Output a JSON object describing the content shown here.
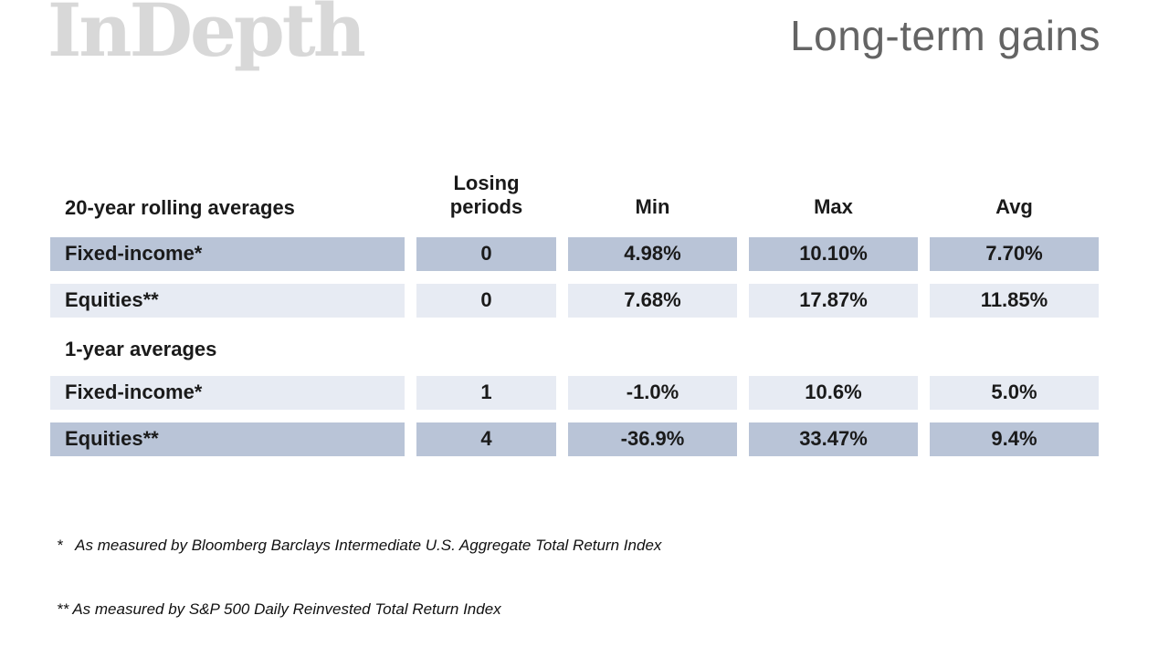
{
  "header": {
    "logo": "InDepth",
    "title": "Long-term gains"
  },
  "table": {
    "columns": [
      "Losing periods",
      "Min",
      "Max",
      "Avg"
    ],
    "sections": [
      {
        "label": "20-year rolling averages",
        "rows": [
          {
            "label": "Fixed-income*",
            "values": [
              "0",
              "4.98%",
              "10.10%",
              "7.70%"
            ],
            "shade": "dark"
          },
          {
            "label": "Equities**",
            "values": [
              "0",
              "7.68%",
              "17.87%",
              "11.85%"
            ],
            "shade": "light"
          }
        ]
      },
      {
        "label": "1-year averages",
        "rows": [
          {
            "label": "Fixed-income*",
            "values": [
              "1",
              "-1.0%",
              "10.6%",
              "5.0%"
            ],
            "shade": "light"
          },
          {
            "label": "Equities**",
            "values": [
              "4",
              "-36.9%",
              "33.47%",
              "9.4%"
            ],
            "shade": "dark"
          }
        ]
      }
    ]
  },
  "footnotes": [
    "*   As measured by Bloomberg Barclays Intermediate U.S. Aggregate Total Return Index",
    "** As measured by S&P 500 Daily Reinvested Total Return Index"
  ],
  "colors": {
    "row_dark": "#b9c4d7",
    "row_light": "#e7ebf3",
    "logo_gray": "#d8d8d8",
    "title_gray": "#646464",
    "text": "#1a1a1a"
  },
  "chart_data": {
    "type": "table",
    "title": "Long-term gains",
    "columns": [
      "",
      "Losing periods",
      "Min",
      "Max",
      "Avg"
    ],
    "rows": [
      {
        "section": "20-year rolling averages",
        "label": "Fixed-income*",
        "losing_periods": 0,
        "min_pct": 4.98,
        "max_pct": 10.1,
        "avg_pct": 7.7
      },
      {
        "section": "20-year rolling averages",
        "label": "Equities**",
        "losing_periods": 0,
        "min_pct": 7.68,
        "max_pct": 17.87,
        "avg_pct": 11.85
      },
      {
        "section": "1-year averages",
        "label": "Fixed-income*",
        "losing_periods": 1,
        "min_pct": -1.0,
        "max_pct": 10.6,
        "avg_pct": 5.0
      },
      {
        "section": "1-year averages",
        "label": "Equities**",
        "losing_periods": 4,
        "min_pct": -36.9,
        "max_pct": 33.47,
        "avg_pct": 9.4
      }
    ],
    "footnotes": [
      "* As measured by Bloomberg Barclays Intermediate U.S. Aggregate Total Return Index",
      "** As measured by S&P 500 Daily Reinvested Total Return Index"
    ]
  }
}
